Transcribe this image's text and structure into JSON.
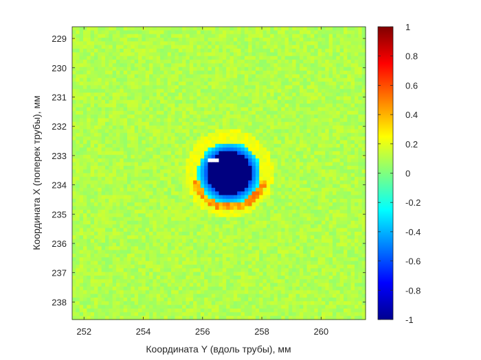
{
  "chart_data": {
    "type": "heatmap",
    "title": "",
    "xlabel": "Координата Y (вдоль трубы), мм",
    "ylabel": "Координата X (поперек трубы), мм",
    "xlim": [
      251.6,
      261.5
    ],
    "ylim": [
      228.6,
      238.6
    ],
    "y_direction": "reversed",
    "x_ticks": [
      "252",
      "254",
      "256",
      "258",
      "260"
    ],
    "y_ticks": [
      "229",
      "230",
      "231",
      "232",
      "233",
      "234",
      "235",
      "236",
      "237",
      "238"
    ],
    "colormap": "jet",
    "colorbar": {
      "range": [
        -1,
        1
      ],
      "ticks": [
        "1",
        "0.8",
        "0.6",
        "0.4",
        "0.2",
        "0",
        "-0.2",
        "-0.4",
        "-0.6",
        "-0.8",
        "-1"
      ]
    },
    "background_value": 0.1,
    "features": [
      {
        "kind": "depression",
        "center_y_mm": 256.9,
        "center_x_mm": 233.6,
        "radius_mm": 0.75,
        "value": -1.0
      },
      {
        "kind": "rim",
        "from_y_mm": 255.4,
        "to_y_mm": 257.8,
        "at_x_mm": 234.9,
        "value": 0.45
      },
      {
        "kind": "no-data",
        "center_y_mm": 256.4,
        "center_x_mm": 233.15,
        "value": null
      }
    ]
  }
}
